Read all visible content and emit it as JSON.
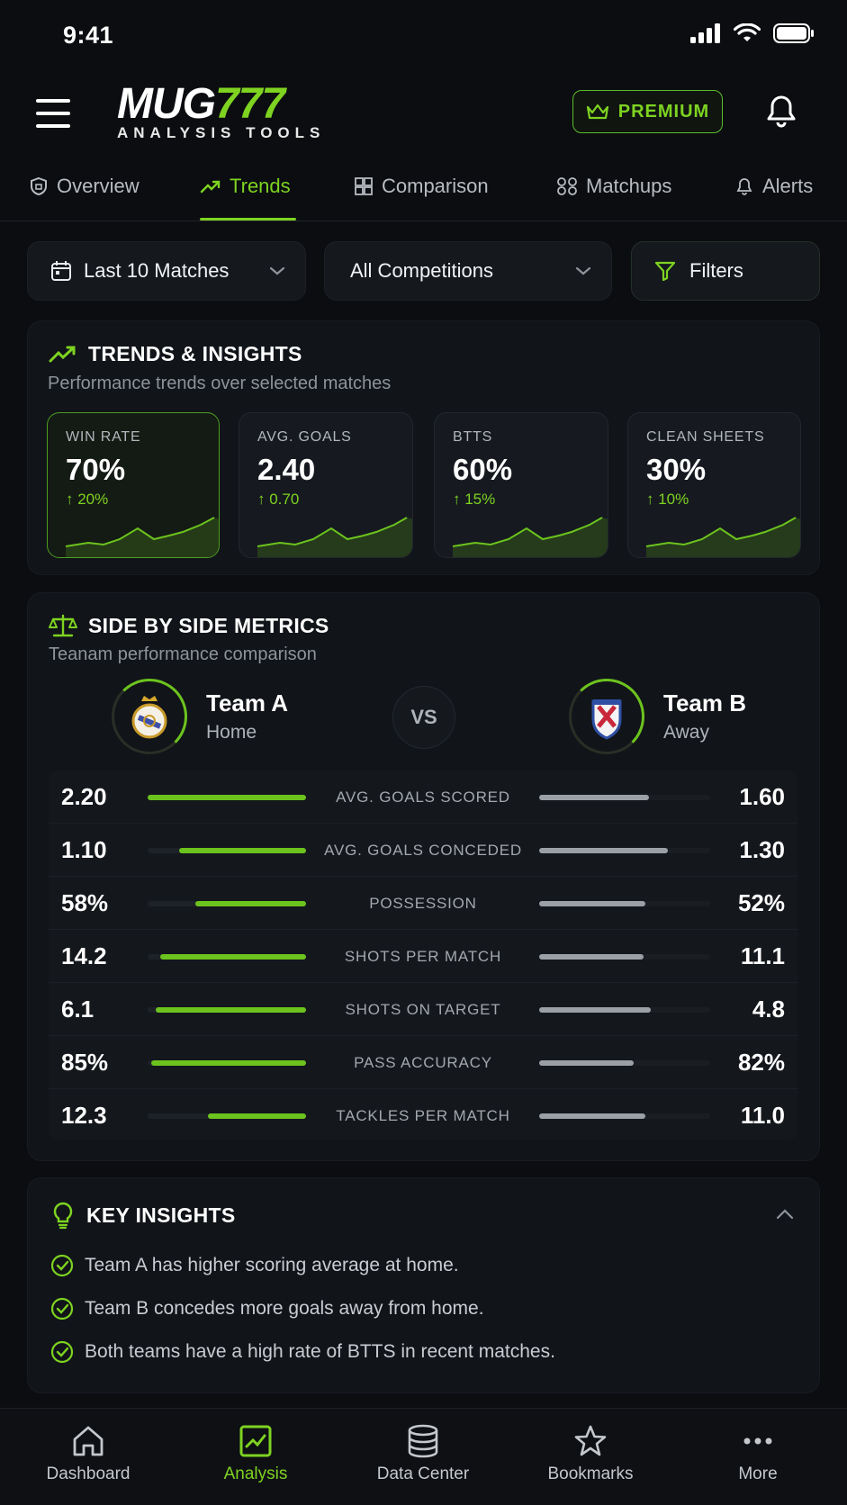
{
  "status": {
    "time": "9:41"
  },
  "header": {
    "logo_main": "MUG",
    "logo_accent": "777",
    "logo_sub": "ANALYSIS TOOLS",
    "premium_label": "PREMIUM"
  },
  "tabs": [
    {
      "label": "Overview",
      "icon": "shield-icon"
    },
    {
      "label": "Trends",
      "icon": "trend-up-icon",
      "active": true
    },
    {
      "label": "Comparison",
      "icon": "grid-icon"
    },
    {
      "label": "Matchups",
      "icon": "matchup-icon"
    },
    {
      "label": "Alerts",
      "icon": "bell-icon"
    }
  ],
  "filters": {
    "range": "Last 10 Matches",
    "competition": "All Competitions",
    "filters_label": "Filters"
  },
  "trends": {
    "title": "TRENDS & INSIGHTS",
    "subtitle": "Performance trends over selected matches",
    "stats": [
      {
        "label": "WIN RATE",
        "value": "70%",
        "change": "↑ 20%"
      },
      {
        "label": "AVG. GOALS",
        "value": "2.40",
        "change": "↑ 0.70"
      },
      {
        "label": "BTTS",
        "value": "60%",
        "change": "↑ 15%"
      },
      {
        "label": "CLEAN SHEETS",
        "value": "30%",
        "change": "↑ 10%"
      }
    ]
  },
  "side_by_side": {
    "title": "SIDE BY SIDE METRICS",
    "subtitle": "Teanam performance comparison",
    "vs": "VS",
    "team_a": {
      "name": "Team A",
      "venue": "Home"
    },
    "team_b": {
      "name": "Team B",
      "venue": "Away"
    },
    "metrics": [
      {
        "label": "AVG. GOALS SCORED",
        "a": "2.20",
        "b": "1.60",
        "a_fill": 1.0,
        "b_fill": 0.64
      },
      {
        "label": "AVG. GOALS CONCEDED",
        "a": "1.10",
        "b": "1.30",
        "a_fill": 0.8,
        "b_fill": 0.75
      },
      {
        "label": "POSSESSION",
        "a": "58%",
        "b": "52%",
        "a_fill": 0.7,
        "b_fill": 0.62
      },
      {
        "label": "SHOTS PER MATCH",
        "a": "14.2",
        "b": "11.1",
        "a_fill": 0.92,
        "b_fill": 0.61
      },
      {
        "label": "SHOTS ON TARGET",
        "a": "6.1",
        "b": "4.8",
        "a_fill": 0.95,
        "b_fill": 0.65
      },
      {
        "label": "PASS ACCURACY",
        "a": "85%",
        "b": "82%",
        "a_fill": 0.98,
        "b_fill": 0.55
      },
      {
        "label": "TACKLES PER MATCH",
        "a": "12.3",
        "b": "11.0",
        "a_fill": 0.62,
        "b_fill": 0.62
      }
    ]
  },
  "key_insights": {
    "title": "KEY INSIGHTS",
    "items": [
      "Team A has higher scoring average at home.",
      "Team B concedes more goals away from home.",
      "Both teams have a high rate of BTTS in recent matches."
    ]
  },
  "bottom_nav": [
    {
      "label": "Dashboard",
      "icon": "home-icon"
    },
    {
      "label": "Analysis",
      "icon": "analysis-icon",
      "active": true
    },
    {
      "label": "Data Center",
      "icon": "database-icon"
    },
    {
      "label": "Bookmarks",
      "icon": "star-icon"
    },
    {
      "label": "More",
      "icon": "more-icon"
    }
  ],
  "colors": {
    "accent": "#7ed321",
    "background": "#0b0d10",
    "card": "#111419"
  }
}
